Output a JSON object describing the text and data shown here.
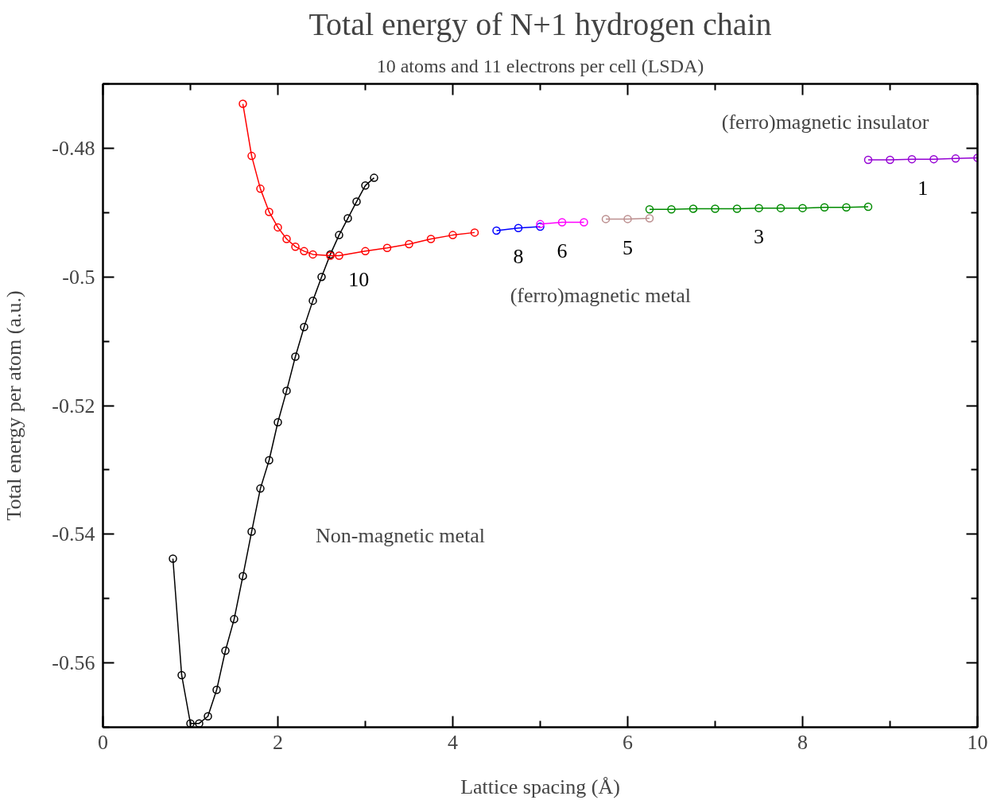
{
  "chart_data": {
    "type": "line",
    "title": "Total energy of N+1 hydrogen chain",
    "subtitle": "10 atoms and 11 electrons per cell (LSDA)",
    "xlabel": "Lattice spacing (Å)",
    "ylabel": "Total energy per atom (a.u.)",
    "xlim": [
      0,
      10
    ],
    "ylim": [
      -0.57,
      -0.47
    ],
    "xticks": [
      0,
      {
        "value": 1,
        "label": null
      },
      2,
      {
        "value": 3,
        "label": null
      },
      4,
      {
        "value": 5,
        "label": null
      },
      6,
      {
        "value": 7,
        "label": null
      },
      8,
      {
        "value": 9,
        "label": null
      },
      10
    ],
    "yticks": [
      {
        "value": -0.57,
        "label": null
      },
      -0.56,
      {
        "value": -0.55,
        "label": null
      },
      -0.54,
      {
        "value": -0.53,
        "label": null
      },
      -0.52,
      {
        "value": -0.51,
        "label": null
      },
      -0.5,
      {
        "value": -0.49,
        "label": null
      },
      -0.48,
      {
        "value": -0.47,
        "label": null
      }
    ],
    "grid": false,
    "legend": false,
    "marker": "circle",
    "line_style": "solid",
    "series": [
      {
        "color": "#000000",
        "x": [
          0.8,
          0.9,
          1.0,
          1.1,
          1.2,
          1.3,
          1.4,
          1.5,
          1.6,
          1.7,
          1.8,
          1.9,
          2.0,
          2.1,
          2.2,
          2.3,
          2.4,
          2.5,
          2.6,
          2.7,
          2.8,
          2.9,
          3.0,
          3.1
        ],
        "values": [
          -0.5438,
          -0.5619,
          -0.5694,
          -0.5694,
          -0.5683,
          -0.5642,
          -0.5581,
          -0.5532,
          -0.5465,
          -0.5396,
          -0.5329,
          -0.5285,
          -0.5226,
          -0.5177,
          -0.5124,
          -0.5078,
          -0.5037,
          -0.5,
          -0.4965,
          -0.4935,
          -0.4909,
          -0.4883,
          -0.4858,
          -0.4846
        ]
      },
      {
        "name": "10",
        "color": "#ff0000",
        "x": [
          1.6,
          1.7,
          1.8,
          1.9,
          2.0,
          2.1,
          2.2,
          2.3,
          2.4,
          2.6,
          2.7,
          3.0,
          3.25,
          3.5,
          3.75,
          4.0,
          4.25
        ],
        "values": [
          -0.4731,
          -0.4812,
          -0.4863,
          -0.4899,
          -0.4923,
          -0.4941,
          -0.4953,
          -0.496,
          -0.4965,
          -0.4967,
          -0.4967,
          -0.496,
          -0.4955,
          -0.4949,
          -0.4941,
          -0.4935,
          -0.4931
        ]
      },
      {
        "name": "8",
        "color": "#0000ff",
        "x": [
          4.5,
          4.75,
          5.0
        ],
        "values": [
          -0.4928,
          -0.4924,
          -0.4922
        ]
      },
      {
        "name": "6",
        "color": "#ff00ff",
        "x": [
          5.0,
          5.25,
          5.5
        ],
        "values": [
          -0.4918,
          -0.4915,
          -0.4915
        ]
      },
      {
        "name": "5",
        "color": "#bc8f8f",
        "x": [
          5.75,
          6.0,
          6.25
        ],
        "values": [
          -0.491,
          -0.491,
          -0.4909
        ]
      },
      {
        "name": "3",
        "color": "#008b00",
        "x": [
          6.25,
          6.5,
          6.75,
          7.0,
          7.25,
          7.5,
          7.75,
          8.0,
          8.25,
          8.5,
          8.75
        ],
        "values": [
          -0.4895,
          -0.4895,
          -0.4894,
          -0.4894,
          -0.4894,
          -0.4893,
          -0.4893,
          -0.4893,
          -0.4892,
          -0.4892,
          -0.4891
        ]
      },
      {
        "name": "1",
        "color": "#9400d3",
        "x": [
          8.75,
          9.0,
          9.25,
          9.5,
          9.75,
          10.0
        ],
        "values": [
          -0.4818,
          -0.4818,
          -0.4817,
          -0.4817,
          -0.4816,
          -0.4815
        ]
      }
    ],
    "annotations": [
      "(ferro)magnetic insulator",
      "(ferro)magnetic metal",
      "Non-magnetic metal"
    ]
  }
}
